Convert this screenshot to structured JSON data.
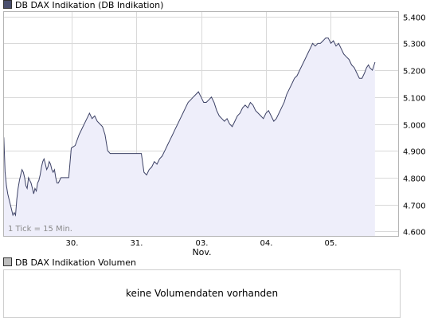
{
  "legend": {
    "main": "DB DAX Indikation (DB Indikation)",
    "volume": "DB DAX Indikation Volumen"
  },
  "volume_panel": {
    "message": "keine Volumendaten vorhanden"
  },
  "colors": {
    "line": "#3d4266",
    "fill": "#eeeefa",
    "grid": "#d9d9d9",
    "border": "#b5b5b5"
  },
  "chart_data": {
    "type": "area",
    "title": "DB DAX Indikation (DB Indikation)",
    "annotation": "1 Tick = 15 Min.",
    "xlabel": "Nov.",
    "ylabel": "",
    "x_ticks": [
      {
        "x": 0.8,
        "label": "30."
      },
      {
        "x": 1.8,
        "label": "31."
      },
      {
        "x": 2.8,
        "label": "03."
      },
      {
        "x": 3.8,
        "label": "04."
      },
      {
        "x": 4.8,
        "label": "05."
      }
    ],
    "xlim": [
      -0.25,
      5.85
    ],
    "ylim": [
      4580,
      5420
    ],
    "y_ticks": [
      {
        "value": 4600,
        "label": "4.600"
      },
      {
        "value": 4700,
        "label": "4.700"
      },
      {
        "value": 4800,
        "label": "4.800"
      },
      {
        "value": 4900,
        "label": "4.900"
      },
      {
        "value": 5000,
        "label": "5.000"
      },
      {
        "value": 5100,
        "label": "5.100"
      },
      {
        "value": 5200,
        "label": "5.200"
      },
      {
        "value": 5300,
        "label": "5.300"
      },
      {
        "value": 5400,
        "label": "5.400"
      }
    ],
    "grid": true,
    "series": [
      {
        "name": "DB DAX Indikation",
        "x": [
          -0.24,
          -0.22,
          -0.2,
          -0.18,
          -0.16,
          -0.14,
          -0.12,
          -0.1,
          -0.08,
          -0.06,
          -0.04,
          -0.02,
          0.0,
          0.02,
          0.04,
          0.06,
          0.08,
          0.1,
          0.12,
          0.14,
          0.16,
          0.18,
          0.2,
          0.22,
          0.24,
          0.26,
          0.28,
          0.3,
          0.32,
          0.34,
          0.36,
          0.38,
          0.4,
          0.42,
          0.44,
          0.46,
          0.48,
          0.5,
          0.52,
          0.54,
          0.56,
          0.58,
          0.6,
          0.64,
          0.7,
          0.76,
          0.8,
          0.86,
          0.92,
          0.98,
          1.04,
          1.08,
          1.12,
          1.16,
          1.2,
          1.24,
          1.28,
          1.32,
          1.36,
          1.4,
          1.44,
          1.48,
          1.52,
          1.56,
          1.6,
          1.64,
          1.7,
          1.76,
          1.82,
          1.88,
          1.92,
          1.96,
          2.0,
          2.04,
          2.08,
          2.12,
          2.16,
          2.2,
          2.24,
          2.28,
          2.32,
          2.36,
          2.4,
          2.44,
          2.48,
          2.52,
          2.56,
          2.6,
          2.64,
          2.68,
          2.72,
          2.76,
          2.8,
          2.84,
          2.88,
          2.92,
          2.96,
          3.0,
          3.04,
          3.08,
          3.12,
          3.16,
          3.2,
          3.24,
          3.28,
          3.32,
          3.36,
          3.4,
          3.44,
          3.48,
          3.52,
          3.56,
          3.6,
          3.64,
          3.68,
          3.72,
          3.76,
          3.8,
          3.84,
          3.88,
          3.92,
          3.96,
          4.0,
          4.04,
          4.08,
          4.12,
          4.16,
          4.2,
          4.24,
          4.28,
          4.32,
          4.36,
          4.4,
          4.44,
          4.48,
          4.52,
          4.56,
          4.6,
          4.64,
          4.68,
          4.72,
          4.76,
          4.8,
          4.84,
          4.88,
          4.92,
          4.96,
          5.0,
          5.04,
          5.08,
          5.12,
          5.16,
          5.2,
          5.24,
          5.28,
          5.32,
          5.35,
          5.38,
          5.4,
          5.44,
          5.48
        ],
        "y": [
          4950,
          4820,
          4770,
          4740,
          4720,
          4700,
          4680,
          4660,
          4670,
          4660,
          4720,
          4760,
          4790,
          4810,
          4830,
          4820,
          4800,
          4770,
          4760,
          4800,
          4790,
          4780,
          4760,
          4740,
          4760,
          4750,
          4780,
          4790,
          4810,
          4840,
          4860,
          4870,
          4850,
          4830,
          4840,
          4860,
          4850,
          4830,
          4820,
          4830,
          4800,
          4780,
          4780,
          4800,
          4800,
          4800,
          4910,
          4920,
          4960,
          4990,
          5020,
          5040,
          5020,
          5030,
          5010,
          5000,
          4990,
          4960,
          4900,
          4890,
          4890,
          4890,
          4890,
          4890,
          4890,
          4890,
          4890,
          4890,
          4890,
          4890,
          4820,
          4810,
          4830,
          4840,
          4860,
          4850,
          4870,
          4880,
          4900,
          4920,
          4940,
          4960,
          4980,
          5000,
          5020,
          5040,
          5060,
          5080,
          5090,
          5100,
          5110,
          5120,
          5100,
          5080,
          5080,
          5090,
          5100,
          5080,
          5050,
          5030,
          5020,
          5010,
          5020,
          5000,
          4990,
          5010,
          5030,
          5040,
          5060,
          5070,
          5060,
          5080,
          5070,
          5050,
          5040,
          5030,
          5020,
          5040,
          5050,
          5030,
          5010,
          5020,
          5040,
          5060,
          5080,
          5110,
          5130,
          5150,
          5170,
          5180,
          5200,
          5220,
          5240,
          5260,
          5280,
          5300,
          5290,
          5300,
          5300,
          5310,
          5320,
          5320,
          5300,
          5310,
          5290,
          5300,
          5280,
          5260,
          5250,
          5240,
          5220,
          5210,
          5190,
          5170,
          5170,
          5190,
          5210,
          5220,
          5210,
          5200,
          5230
        ]
      }
    ]
  }
}
